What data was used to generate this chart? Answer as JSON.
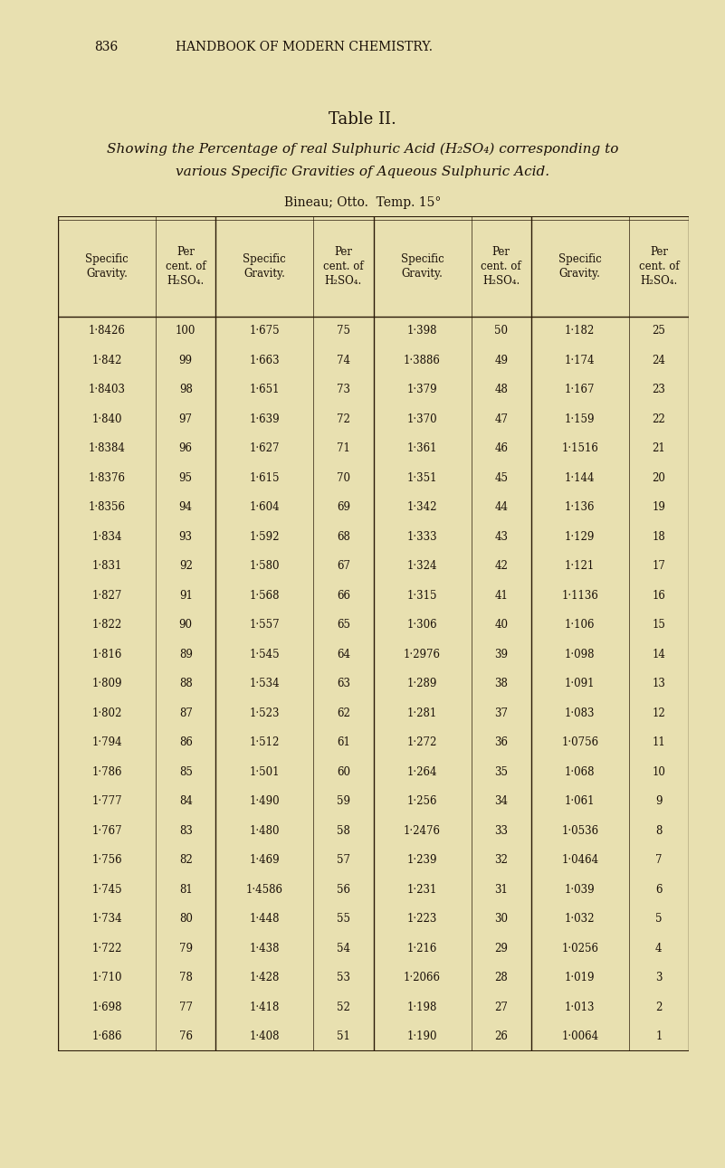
{
  "page_number": "836",
  "header": "HANDBOOK OF MODERN CHEMISTRY.",
  "title": "Table II.",
  "subtitle_line1": "Showing the Percentage of real Sulphuric Acid (H₂SO₄) corresponding to",
  "subtitle_line2": "various Specific Gravities of Aqueous Sulphuric Acid.",
  "bineau_line": "Bineau; Otto.  Temp. 15°",
  "col_headers": [
    "Specific\nGravity.",
    "Per\ncent. of\nH₂SO₄.",
    "Specific\nGravity.",
    "Per\ncent. of\nH₂SO₄.",
    "Specific\nGravity.",
    "Per\ncent. of\nH₂SO₄.",
    "Specific\nGravity.",
    "Per\ncent. of\nH₂SO₄."
  ],
  "table_data": [
    [
      "1·8426",
      "100",
      "1·675",
      "75",
      "1·398",
      "50",
      "1·182",
      "25"
    ],
    [
      "1·842",
      "99",
      "1·663",
      "74",
      "1·3886",
      "49",
      "1·174",
      "24"
    ],
    [
      "1·8403",
      "98",
      "1·651",
      "73",
      "1·379",
      "48",
      "1·167",
      "23"
    ],
    [
      "1·840",
      "97",
      "1·639",
      "72",
      "1·370",
      "47",
      "1·159",
      "22"
    ],
    [
      "1·8384",
      "96",
      "1·627",
      "71",
      "1·361",
      "46",
      "1·1516",
      "21"
    ],
    [
      "1·8376",
      "95",
      "1·615",
      "70",
      "1·351",
      "45",
      "1·144",
      "20"
    ],
    [
      "1·8356",
      "94",
      "1·604",
      "69",
      "1·342",
      "44",
      "1·136",
      "19"
    ],
    [
      "1·834",
      "93",
      "1·592",
      "68",
      "1·333",
      "43",
      "1·129",
      "18"
    ],
    [
      "1·831",
      "92",
      "1·580",
      "67",
      "1·324",
      "42",
      "1·121",
      "17"
    ],
    [
      "1·827",
      "91",
      "1·568",
      "66",
      "1·315",
      "41",
      "1·1136",
      "16"
    ],
    [
      "1·822",
      "90",
      "1·557",
      "65",
      "1·306",
      "40",
      "1·106",
      "15"
    ],
    [
      "1·816",
      "89",
      "1·545",
      "64",
      "1·2976",
      "39",
      "1·098",
      "14"
    ],
    [
      "1·809",
      "88",
      "1·534",
      "63",
      "1·289",
      "38",
      "1·091",
      "13"
    ],
    [
      "1·802",
      "87",
      "1·523",
      "62",
      "1·281",
      "37",
      "1·083",
      "12"
    ],
    [
      "1·794",
      "86",
      "1·512",
      "61",
      "1·272",
      "36",
      "1·0756",
      "11"
    ],
    [
      "1·786",
      "85",
      "1·501",
      "60",
      "1·264",
      "35",
      "1·068",
      "10"
    ],
    [
      "1·777",
      "84",
      "1·490",
      "59",
      "1·256",
      "34",
      "1·061",
      "9"
    ],
    [
      "1·767",
      "83",
      "1·480",
      "58",
      "1·2476",
      "33",
      "1·0536",
      "8"
    ],
    [
      "1·756",
      "82",
      "1·469",
      "57",
      "1·239",
      "32",
      "1·0464",
      "7"
    ],
    [
      "1·745",
      "81",
      "1·4586",
      "56",
      "1·231",
      "31",
      "1·039",
      "6"
    ],
    [
      "1·734",
      "80",
      "1·448",
      "55",
      "1·223",
      "30",
      "1·032",
      "5"
    ],
    [
      "1·722",
      "79",
      "1·438",
      "54",
      "1·216",
      "29",
      "1·0256",
      "4"
    ],
    [
      "1·710",
      "78",
      "1·428",
      "53",
      "1·2066",
      "28",
      "1·019",
      "3"
    ],
    [
      "1·698",
      "77",
      "1·418",
      "52",
      "1·198",
      "27",
      "1·013",
      "2"
    ],
    [
      "1·686",
      "76",
      "1·408",
      "51",
      "1·190",
      "26",
      "1·0064",
      "1"
    ]
  ],
  "bg_color": "#e8e0b0",
  "text_color": "#1a1008",
  "line_color": "#2a1a08"
}
